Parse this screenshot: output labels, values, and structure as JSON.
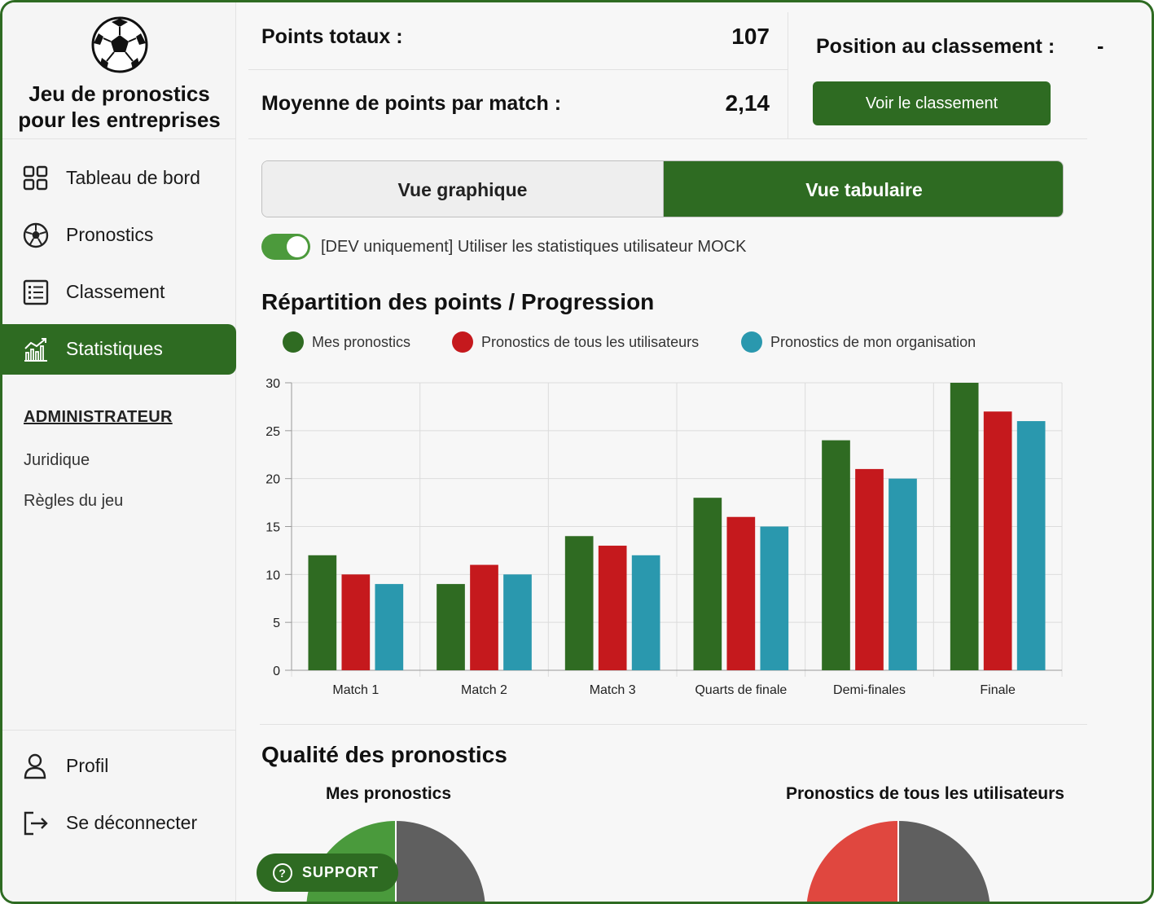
{
  "brand": {
    "title_line1": "Jeu de pronostics",
    "title_line2": "pour les entreprises"
  },
  "sidebar": {
    "items": [
      {
        "label": "Tableau de bord",
        "icon": "grid-icon"
      },
      {
        "label": "Pronostics",
        "icon": "soccer-ball-icon"
      },
      {
        "label": "Classement",
        "icon": "list-icon"
      },
      {
        "label": "Statistiques",
        "icon": "chart-icon",
        "active": true
      }
    ],
    "admin_heading": "ADMINISTRATEUR",
    "admin_links": [
      "Juridique",
      "Règles du jeu"
    ],
    "profile_label": "Profil",
    "logout_label": "Se déconnecter"
  },
  "stats": {
    "total_label": "Points totaux :",
    "total_value": "107",
    "avg_label": "Moyenne de points par match :",
    "avg_value": "2,14",
    "rank_label": "Position au classement :",
    "rank_value": "-",
    "rank_button": "Voir le classement"
  },
  "view_toggle": {
    "graph": "Vue graphique",
    "table": "Vue tabulaire",
    "selected": "Vue tabulaire"
  },
  "mock_toggle": {
    "label": "[DEV uniquement] Utiliser les statistiques utilisateur MOCK",
    "on": true
  },
  "section1_title": "Répartition des points / Progression",
  "section2_title": "Qualité des pronostics",
  "colors": {
    "primary": "#2e6b22",
    "mine": "#2f6b22",
    "all": "#c5191d",
    "org": "#2a98ae"
  },
  "chart_data": {
    "type": "bar",
    "categories": [
      "Match 1",
      "Match 2",
      "Match 3",
      "Quarts de finale",
      "Demi-finales",
      "Finale"
    ],
    "series": [
      {
        "name": "Mes pronostics",
        "values": [
          12,
          9,
          14,
          18,
          24,
          30
        ]
      },
      {
        "name": "Pronostics de tous les utilisateurs",
        "values": [
          10,
          11,
          13,
          16,
          21,
          27
        ]
      },
      {
        "name": "Pronostics de mon organisation",
        "values": [
          9,
          10,
          12,
          15,
          20,
          26
        ]
      }
    ],
    "ylim": [
      0,
      30
    ],
    "yticks": [
      0,
      5,
      10,
      15,
      20,
      25,
      30
    ],
    "grid": true,
    "legend": "top"
  },
  "pies": [
    {
      "title": "Mes pronostics",
      "colors": [
        "#4a9a3c",
        "#5f5f5f"
      ]
    },
    {
      "title": "Pronostics de tous les utilisateurs",
      "colors": [
        "#e0473f",
        "#5f5f5f"
      ]
    }
  ],
  "support_label": "SUPPORT"
}
